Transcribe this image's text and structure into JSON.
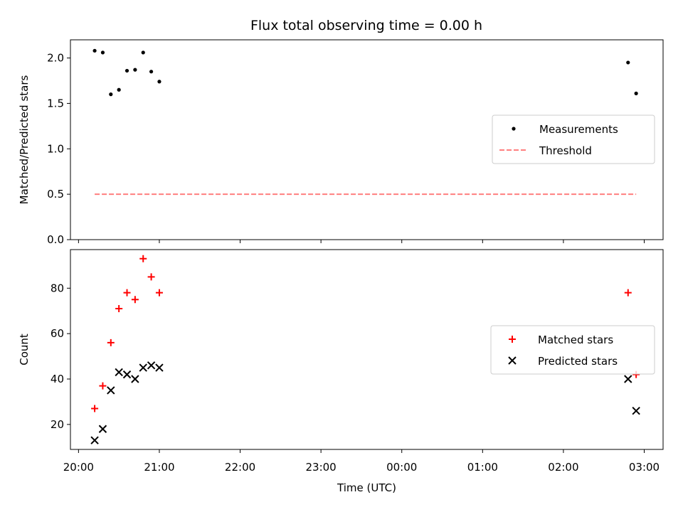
{
  "title": "Flux total observing time = 0.00 h",
  "chart_data": [
    {
      "type": "scatter",
      "panel": "top",
      "title": "Flux total observing time = 0.00 h",
      "xlabel": "",
      "ylabel": "Matched/Predicted stars",
      "xlim": [
        "19:54",
        "03:14"
      ],
      "ylim": [
        0,
        2.2
      ],
      "yticks": [
        "0.0",
        "0.5",
        "1.0",
        "1.5",
        "2.0"
      ],
      "legend_position": "center-right",
      "series": [
        {
          "name": "Measurements",
          "kind": "scatter",
          "marker": "dot",
          "color": "#000000",
          "x": [
            "20:12",
            "20:18",
            "20:24",
            "20:30",
            "20:36",
            "20:42",
            "20:48",
            "20:54",
            "21:00",
            "02:48",
            "02:54"
          ],
          "y": [
            2.08,
            2.06,
            1.6,
            1.65,
            1.86,
            1.87,
            2.06,
            1.85,
            1.74,
            1.95,
            1.61
          ]
        },
        {
          "name": "Threshold",
          "kind": "line",
          "style": "dashed",
          "color": "#ff7f7f",
          "x": [
            "20:12",
            "02:54"
          ],
          "y": [
            0.5,
            0.5
          ]
        }
      ]
    },
    {
      "type": "scatter",
      "panel": "bottom",
      "title": "",
      "xlabel": "Time (UTC)",
      "ylabel": "Count",
      "xlim": [
        "19:54",
        "03:14"
      ],
      "ylim": [
        9,
        97
      ],
      "xticks": [
        "20:00",
        "21:00",
        "22:00",
        "23:00",
        "00:00",
        "01:00",
        "02:00",
        "03:00"
      ],
      "yticks": [
        "20",
        "40",
        "60",
        "80"
      ],
      "legend_position": "center-right",
      "series": [
        {
          "name": "Matched stars",
          "marker": "plus",
          "color": "#ff0000",
          "x": [
            "20:12",
            "20:18",
            "20:24",
            "20:30",
            "20:36",
            "20:42",
            "20:48",
            "20:54",
            "21:00",
            "02:48",
            "02:54"
          ],
          "y": [
            27,
            37,
            56,
            71,
            78,
            75,
            93,
            85,
            78,
            78,
            42
          ]
        },
        {
          "name": "Predicted stars",
          "marker": "x",
          "color": "#000000",
          "x": [
            "20:12",
            "20:18",
            "20:24",
            "20:30",
            "20:36",
            "20:42",
            "20:48",
            "20:54",
            "21:00",
            "02:48",
            "02:54"
          ],
          "y": [
            13,
            18,
            35,
            43,
            42,
            40,
            45,
            46,
            45,
            40,
            26
          ]
        }
      ]
    }
  ]
}
